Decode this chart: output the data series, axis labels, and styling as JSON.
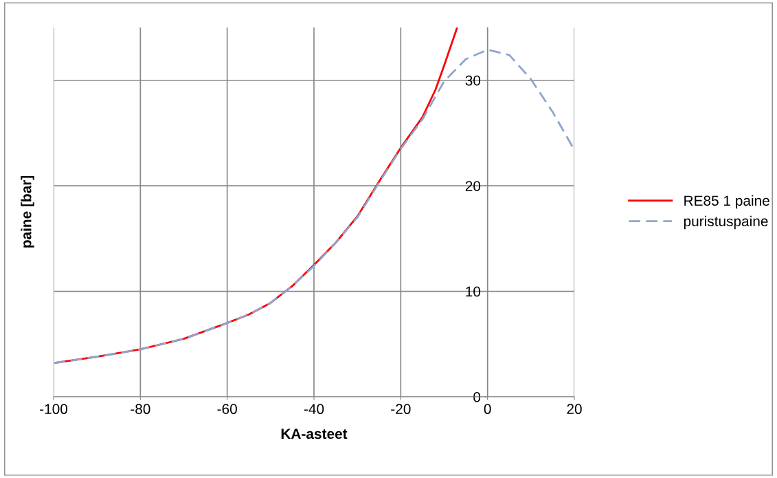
{
  "chart_data": {
    "type": "line",
    "xlabel": "KA-asteet",
    "ylabel": "paine [bar]",
    "xlim": [
      -100,
      20
    ],
    "xticks": [
      -100,
      -80,
      -60,
      -40,
      -20,
      0,
      20
    ],
    "ylim": [
      0,
      35
    ],
    "yticks": [
      0,
      10,
      20,
      30
    ],
    "grid": true,
    "legend": "right",
    "series": [
      {
        "name": "RE85 1 paine",
        "color": "#ff0000",
        "line_style": "solid",
        "x": [
          -100,
          -90,
          -80,
          -70,
          -60,
          -55,
          -50,
          -45,
          -40,
          -35,
          -30,
          -25,
          -20,
          -15,
          -12,
          -10,
          -7
        ],
        "values": [
          3.2,
          3.8,
          4.5,
          5.5,
          7.0,
          7.8,
          8.9,
          10.5,
          12.5,
          14.6,
          17.1,
          20.4,
          23.6,
          26.5,
          29.1,
          31.4,
          35
        ]
      },
      {
        "name": "puristuspaine",
        "color": "#8ea5cf",
        "line_style": "dashed",
        "x": [
          -100,
          -90,
          -80,
          -70,
          -60,
          -55,
          -50,
          -45,
          -40,
          -35,
          -30,
          -25,
          -20,
          -15,
          -10,
          -5,
          0,
          5,
          10,
          15,
          20
        ],
        "values": [
          3.2,
          3.8,
          4.5,
          5.5,
          7.0,
          7.8,
          8.9,
          10.5,
          12.4,
          14.6,
          17.0,
          20.3,
          23.5,
          26.3,
          29.9,
          32.0,
          32.9,
          32.4,
          30.1,
          27.0,
          23.4
        ]
      }
    ]
  }
}
